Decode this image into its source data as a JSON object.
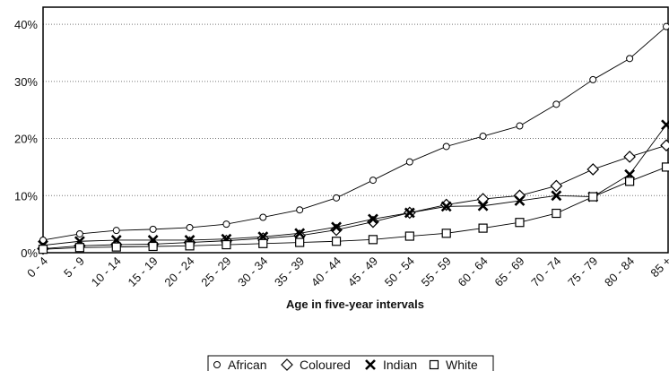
{
  "chart_data": {
    "type": "line",
    "title": "",
    "xlabel": "Age in five-year intervals",
    "ylabel": "",
    "categories": [
      "0 - 4",
      "5 - 9",
      "10 - 14",
      "15 - 19",
      "20 - 24",
      "25 - 29",
      "30 - 34",
      "35 - 39",
      "40 - 44",
      "45 - 49",
      "50 - 54",
      "55 - 59",
      "60 - 64",
      "65 - 69",
      "70 - 74",
      "75 - 79",
      "80 - 84",
      "85 +"
    ],
    "yticks": [
      "0%",
      "10%",
      "20%",
      "30%",
      "40%"
    ],
    "ylim": [
      0,
      0.43
    ],
    "grid": "horizontal dotted",
    "legend_placement": "bottom",
    "series": [
      {
        "name": "African",
        "marker": "circle",
        "values": [
          0.022,
          0.033,
          0.039,
          0.041,
          0.044,
          0.05,
          0.062,
          0.075,
          0.096,
          0.127,
          0.159,
          0.186,
          0.204,
          0.222,
          0.26,
          0.303,
          0.34,
          0.396
        ]
      },
      {
        "name": "Coloured",
        "marker": "diamond",
        "values": [
          0.007,
          0.012,
          0.014,
          0.015,
          0.018,
          0.021,
          0.025,
          0.03,
          0.04,
          0.054,
          0.07,
          0.084,
          0.094,
          0.1,
          0.117,
          0.146,
          0.168,
          0.188
        ]
      },
      {
        "name": "Indian",
        "marker": "x",
        "values": [
          0.013,
          0.02,
          0.022,
          0.022,
          0.022,
          0.024,
          0.028,
          0.034,
          0.045,
          0.059,
          0.07,
          0.081,
          0.082,
          0.091,
          0.1,
          0.098,
          0.137,
          0.224
        ]
      },
      {
        "name": "White",
        "marker": "square",
        "values": [
          0.006,
          0.009,
          0.01,
          0.011,
          0.012,
          0.014,
          0.016,
          0.018,
          0.02,
          0.023,
          0.029,
          0.034,
          0.043,
          0.053,
          0.069,
          0.098,
          0.125,
          0.15
        ]
      }
    ]
  }
}
